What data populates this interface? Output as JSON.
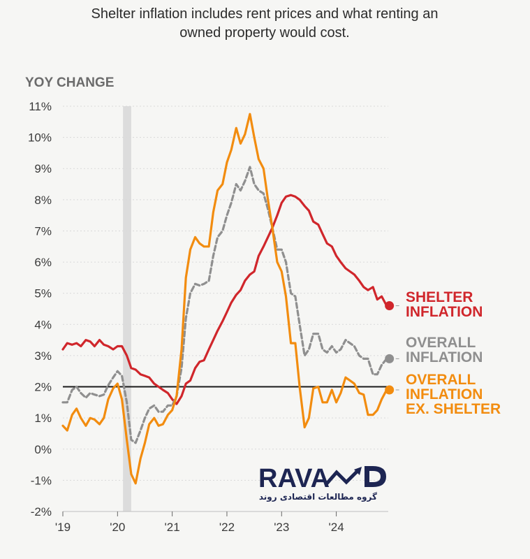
{
  "chart_data": {
    "type": "line",
    "title": "Shelter inflation includes rent prices and what renting an",
    "subtitle": "owned property would cost.",
    "ylabel": "YOY CHANGE",
    "xlabel": "",
    "ylim": [
      -2,
      11
    ],
    "xlim": [
      2019.0,
      2024.95
    ],
    "yticks": [
      -2,
      -1,
      0,
      1,
      2,
      3,
      4,
      5,
      6,
      7,
      8,
      9,
      10,
      11
    ],
    "ytick_labels": [
      "-2%",
      "-1%",
      "0%",
      "1%",
      "2%",
      "3%",
      "4%",
      "5%",
      "6%",
      "7%",
      "8%",
      "9%",
      "10%",
      "11%"
    ],
    "xticks": [
      2019,
      2020,
      2021,
      2022,
      2023,
      2024
    ],
    "xtick_labels": [
      "'19",
      "'20",
      "'21",
      "'22",
      "'23",
      "'24"
    ],
    "reference_line": 2,
    "recession_band": [
      2020.1,
      2020.25
    ],
    "series": [
      {
        "name": "SHELTER INFLATION",
        "legend_lines": [
          "SHELTER",
          "INFLATION"
        ],
        "color": "#d0262b",
        "dash": false,
        "x": [
          2019.0,
          2019.08,
          2019.17,
          2019.25,
          2019.33,
          2019.42,
          2019.5,
          2019.58,
          2019.67,
          2019.75,
          2019.83,
          2019.92,
          2020.0,
          2020.08,
          2020.17,
          2020.25,
          2020.33,
          2020.42,
          2020.5,
          2020.58,
          2020.67,
          2020.75,
          2020.83,
          2020.92,
          2021.0,
          2021.08,
          2021.17,
          2021.25,
          2021.33,
          2021.42,
          2021.5,
          2021.58,
          2021.67,
          2021.75,
          2021.83,
          2021.92,
          2022.0,
          2022.08,
          2022.17,
          2022.25,
          2022.33,
          2022.42,
          2022.5,
          2022.58,
          2022.67,
          2022.75,
          2022.83,
          2022.92,
          2023.0,
          2023.08,
          2023.17,
          2023.25,
          2023.33,
          2023.42,
          2023.5,
          2023.58,
          2023.67,
          2023.75,
          2023.83,
          2023.92,
          2024.0,
          2024.08,
          2024.17,
          2024.25,
          2024.33,
          2024.42,
          2024.5,
          2024.58,
          2024.67,
          2024.75,
          2024.83,
          2024.92
        ],
        "values": [
          3.2,
          3.4,
          3.35,
          3.4,
          3.3,
          3.5,
          3.45,
          3.3,
          3.5,
          3.35,
          3.3,
          3.2,
          3.3,
          3.3,
          3.0,
          2.6,
          2.55,
          2.4,
          2.35,
          2.3,
          2.1,
          2.0,
          1.9,
          1.8,
          1.6,
          1.45,
          1.7,
          2.1,
          2.2,
          2.6,
          2.8,
          2.85,
          3.2,
          3.5,
          3.8,
          4.1,
          4.4,
          4.7,
          4.95,
          5.1,
          5.4,
          5.6,
          5.7,
          6.2,
          6.5,
          6.8,
          7.1,
          7.5,
          7.9,
          8.1,
          8.15,
          8.1,
          8.0,
          7.8,
          7.65,
          7.3,
          7.2,
          6.9,
          6.6,
          6.5,
          6.2,
          6.0,
          5.8,
          5.7,
          5.6,
          5.4,
          5.2,
          5.1,
          5.2,
          4.8,
          4.9,
          4.6
        ]
      },
      {
        "name": "OVERALL INFLATION",
        "legend_lines": [
          "OVERALL",
          "INFLATION"
        ],
        "color": "#8f8f8f",
        "dash": true,
        "x": [
          2019.0,
          2019.08,
          2019.17,
          2019.25,
          2019.33,
          2019.42,
          2019.5,
          2019.58,
          2019.67,
          2019.75,
          2019.83,
          2019.92,
          2020.0,
          2020.08,
          2020.17,
          2020.25,
          2020.33,
          2020.42,
          2020.5,
          2020.58,
          2020.67,
          2020.75,
          2020.83,
          2020.92,
          2021.0,
          2021.08,
          2021.17,
          2021.25,
          2021.33,
          2021.42,
          2021.5,
          2021.58,
          2021.67,
          2021.75,
          2021.83,
          2021.92,
          2022.0,
          2022.08,
          2022.17,
          2022.25,
          2022.33,
          2022.42,
          2022.5,
          2022.58,
          2022.67,
          2022.75,
          2022.83,
          2022.92,
          2023.0,
          2023.08,
          2023.17,
          2023.25,
          2023.33,
          2023.42,
          2023.5,
          2023.58,
          2023.67,
          2023.75,
          2023.83,
          2023.92,
          2024.0,
          2024.08,
          2024.17,
          2024.25,
          2024.33,
          2024.42,
          2024.5,
          2024.58,
          2024.67,
          2024.75,
          2024.83,
          2024.92
        ],
        "values": [
          1.5,
          1.5,
          1.9,
          2.0,
          1.8,
          1.65,
          1.8,
          1.75,
          1.7,
          1.75,
          2.05,
          2.3,
          2.5,
          2.35,
          1.5,
          0.3,
          0.2,
          0.6,
          1.0,
          1.3,
          1.4,
          1.2,
          1.2,
          1.4,
          1.4,
          1.7,
          2.6,
          4.2,
          5.0,
          5.3,
          5.25,
          5.3,
          5.4,
          6.2,
          6.8,
          7.0,
          7.5,
          7.9,
          8.5,
          8.3,
          8.6,
          9.05,
          8.5,
          8.3,
          8.2,
          7.7,
          7.1,
          6.4,
          6.4,
          6.0,
          5.0,
          4.9,
          4.0,
          3.0,
          3.2,
          3.7,
          3.7,
          3.2,
          3.1,
          3.3,
          3.1,
          3.2,
          3.5,
          3.4,
          3.3,
          3.0,
          2.9,
          2.9,
          2.4,
          2.4,
          2.7,
          2.9
        ]
      },
      {
        "name": "OVERALL INFLATION EX. SHELTER",
        "legend_lines": [
          "OVERALL",
          "INFLATION",
          "EX. SHELTER"
        ],
        "color": "#f28c0f",
        "dash": false,
        "x": [
          2019.0,
          2019.08,
          2019.17,
          2019.25,
          2019.33,
          2019.42,
          2019.5,
          2019.58,
          2019.67,
          2019.75,
          2019.83,
          2019.92,
          2020.0,
          2020.08,
          2020.17,
          2020.25,
          2020.33,
          2020.42,
          2020.5,
          2020.58,
          2020.67,
          2020.75,
          2020.83,
          2020.92,
          2021.0,
          2021.08,
          2021.17,
          2021.25,
          2021.33,
          2021.42,
          2021.5,
          2021.58,
          2021.67,
          2021.75,
          2021.83,
          2021.92,
          2022.0,
          2022.08,
          2022.17,
          2022.25,
          2022.33,
          2022.42,
          2022.5,
          2022.58,
          2022.67,
          2022.75,
          2022.83,
          2022.92,
          2023.0,
          2023.08,
          2023.17,
          2023.25,
          2023.33,
          2023.42,
          2023.5,
          2023.58,
          2023.67,
          2023.75,
          2023.83,
          2023.92,
          2024.0,
          2024.08,
          2024.17,
          2024.25,
          2024.33,
          2024.42,
          2024.5,
          2024.58,
          2024.67,
          2024.75,
          2024.83,
          2024.92
        ],
        "values": [
          0.75,
          0.6,
          1.1,
          1.3,
          1.0,
          0.75,
          1.0,
          0.95,
          0.8,
          1.0,
          1.6,
          1.95,
          2.1,
          1.6,
          0.3,
          -0.8,
          -1.1,
          -0.3,
          0.2,
          0.8,
          1.0,
          0.75,
          0.8,
          1.1,
          1.25,
          1.7,
          3.2,
          5.5,
          6.4,
          6.8,
          6.6,
          6.5,
          6.5,
          7.6,
          8.3,
          8.5,
          9.2,
          9.6,
          10.3,
          9.8,
          10.1,
          10.75,
          10.0,
          9.3,
          9.0,
          8.0,
          7.1,
          6.0,
          5.7,
          4.9,
          3.4,
          3.4,
          2.0,
          0.7,
          1.0,
          1.95,
          2.0,
          1.5,
          1.5,
          1.9,
          1.5,
          1.8,
          2.3,
          2.2,
          2.1,
          1.8,
          1.75,
          1.1,
          1.1,
          1.25,
          1.6,
          1.9
        ]
      }
    ]
  },
  "watermark": {
    "brand": "RAVAND",
    "brand_text": "RAVA",
    "tagline": "گروه مطالعات اقتصادی روند",
    "color": "#1d2552"
  }
}
